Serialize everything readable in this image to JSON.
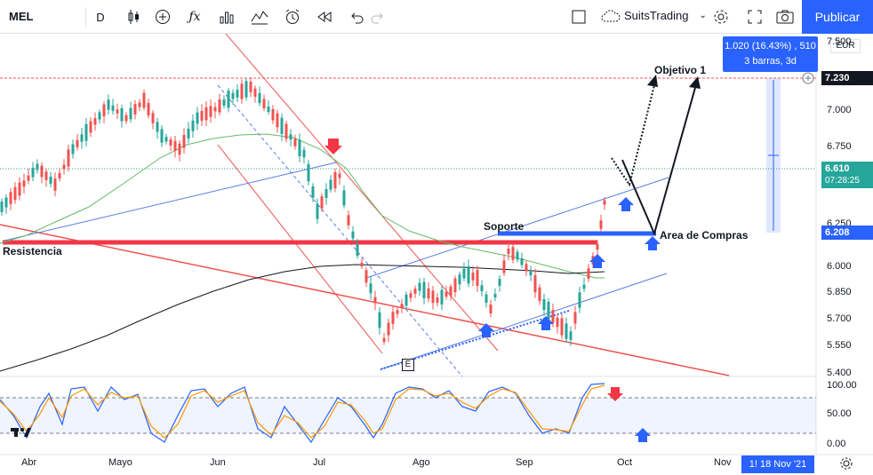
{
  "toolbar": {
    "symbol": "MEL",
    "interval": "D",
    "broker": "SuitsTrading",
    "publish_label": "Publicar"
  },
  "price_axis": {
    "currency": "EUR",
    "ticks": [
      "7.500",
      "7.000",
      "6.750",
      "6.250",
      "6.000",
      "5.850",
      "5.700",
      "5.550",
      "5.400"
    ],
    "target_price": "7.230",
    "last_price": "6.610",
    "countdown": "07:28:25",
    "buy_zone_price": "6.208",
    "target_color": "#131722",
    "last_color": "#26a69a",
    "buy_color": "#2962ff"
  },
  "osc_axis": {
    "ticks": [
      "100.00",
      "50.00",
      "0.00"
    ]
  },
  "time_axis": {
    "ticks": [
      "Abr",
      "Mayo",
      "Jun",
      "Jul",
      "Ago",
      "Sep",
      "Oct",
      "Nov"
    ],
    "current_date": "18 Nov '21",
    "current_prefix": "1!"
  },
  "measure_tooltip": {
    "line1": "1.020 (16.43%) , 510",
    "line2": "3 barras, 3d"
  },
  "annotations": {
    "objetivo": "Objetivo 1",
    "soporte": "Soporte",
    "resistencia": "Resistencia",
    "area_compras": "Area de Compras",
    "e_marker": "E"
  }
}
